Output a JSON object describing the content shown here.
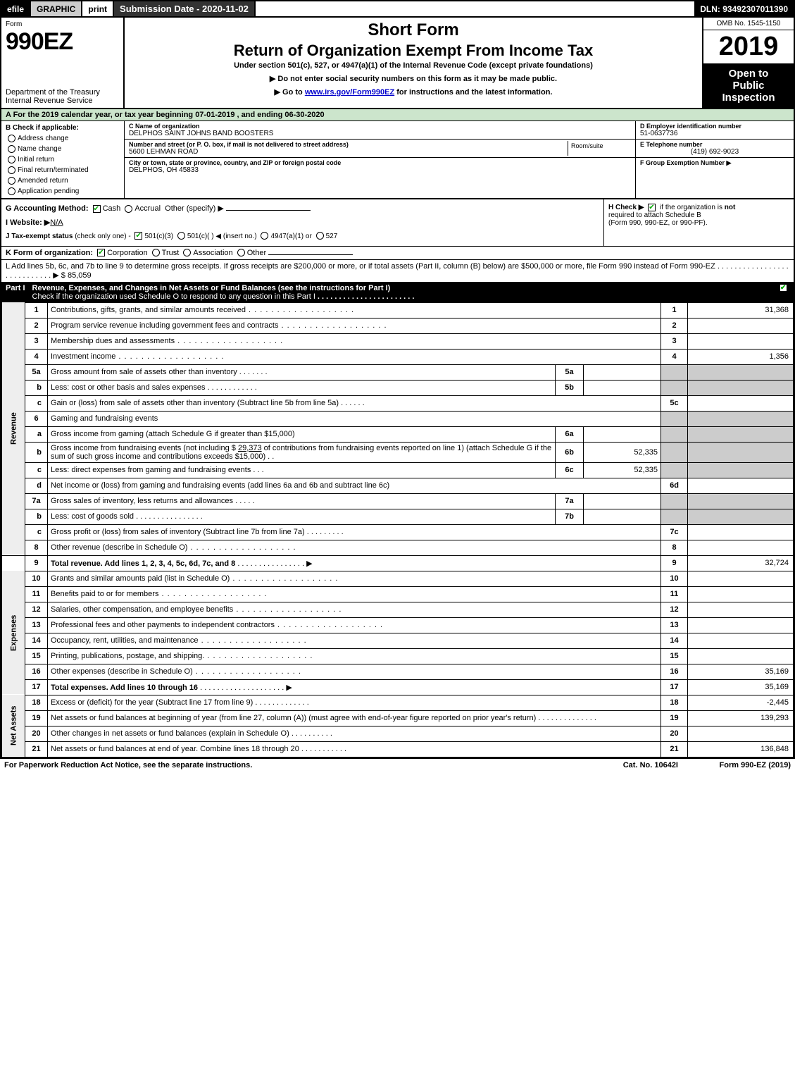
{
  "topbar": {
    "efile": "efile",
    "graphic": "GRAPHIC",
    "print": "print",
    "submission_label": "Submission Date - 2020-11-02",
    "dln": "DLN: 93492307011390"
  },
  "header": {
    "form_word": "Form",
    "form_number": "990EZ",
    "dept1": "Department of the Treasury",
    "dept2": "Internal Revenue Service",
    "short_form": "Short Form",
    "return_title": "Return of Organization Exempt From Income Tax",
    "subtitle": "Under section 501(c), 527, or 4947(a)(1) of the Internal Revenue Code (except private foundations)",
    "bullet1": "▶ Do not enter social security numbers on this form as it may be made public.",
    "bullet2_prefix": "▶ Go to ",
    "bullet2_link": "www.irs.gov/Form990EZ",
    "bullet2_suffix": " for instructions and the latest information.",
    "omb": "OMB No. 1545-1150",
    "year": "2019",
    "open1": "Open to",
    "open2": "Public",
    "open3": "Inspection"
  },
  "period": "A  For the 2019 calendar year, or tax year beginning 07-01-2019 , and ending 06-30-2020",
  "section_b": {
    "label": "B  Check if applicable:",
    "options": [
      "Address change",
      "Name change",
      "Initial return",
      "Final return/terminated",
      "Amended return",
      "Application pending"
    ]
  },
  "section_c": {
    "c_label": "C Name of organization",
    "c_name": "DELPHOS SAINT JOHNS BAND BOOSTERS",
    "addr_label": "Number and street (or P. O. box, if mail is not delivered to street address)",
    "addr_val": "5600 LEHMAN ROAD",
    "room_label": "Room/suite",
    "city_label": "City or town, state or province, country, and ZIP or foreign postal code",
    "city_val": "DELPHOS, OH  45833"
  },
  "section_d": {
    "d_label": "D Employer identification number",
    "d_val": "51-0637736",
    "e_label": "E Telephone number",
    "e_val": "(419) 692-9023",
    "f_label": "F Group Exemption Number  ▶"
  },
  "ghij": {
    "g_label": "G Accounting Method:",
    "g_cash": "Cash",
    "g_accrual": "Accrual",
    "g_other": "Other (specify) ▶",
    "i_label": "I Website: ▶",
    "i_val": "N/A",
    "j_label": "J Tax-exempt status",
    "j_note": "(check only one) -",
    "j_501c3": "501(c)(3)",
    "j_501c": "501(c)(  )",
    "j_insert": "◀ (insert no.)",
    "j_4947": "4947(a)(1) or",
    "j_527": "527",
    "h_label": "H  Check ▶",
    "h_text1": "if the organization is",
    "h_not": "not",
    "h_text2": "required to attach Schedule B",
    "h_text3": "(Form 990, 990-EZ, or 990-PF)."
  },
  "k_row": {
    "label": "K Form of organization:",
    "corp": "Corporation",
    "trust": "Trust",
    "assoc": "Association",
    "other": "Other"
  },
  "l_row": {
    "text": "L Add lines 5b, 6c, and 7b to line 9 to determine gross receipts. If gross receipts are $200,000 or more, or if total assets (Part II, column (B) below) are $500,000 or more, file Form 990 instead of Form 990-EZ",
    "arrow": "▶",
    "amount": "$ 85,059"
  },
  "part1": {
    "label": "Part I",
    "title": "Revenue, Expenses, and Changes in Net Assets or Fund Balances (see the instructions for Part I)",
    "check_line": "Check if the organization used Schedule O to respond to any question in this Part I"
  },
  "revenue_label": "Revenue",
  "expenses_label": "Expenses",
  "netassets_label": "Net Assets",
  "lines": {
    "l1": {
      "num": "1",
      "desc": "Contributions, gifts, grants, and similar amounts received",
      "rnum": "1",
      "amount": "31,368"
    },
    "l2": {
      "num": "2",
      "desc": "Program service revenue including government fees and contracts",
      "rnum": "2",
      "amount": ""
    },
    "l3": {
      "num": "3",
      "desc": "Membership dues and assessments",
      "rnum": "3",
      "amount": ""
    },
    "l4": {
      "num": "4",
      "desc": "Investment income",
      "rnum": "4",
      "amount": "1,356"
    },
    "l5a": {
      "num": "5a",
      "desc": "Gross amount from sale of assets other than inventory",
      "inum": "5a",
      "ival": ""
    },
    "l5b": {
      "num": "b",
      "desc": "Less: cost or other basis and sales expenses",
      "inum": "5b",
      "ival": ""
    },
    "l5c": {
      "num": "c",
      "desc": "Gain or (loss) from sale of assets other than inventory (Subtract line 5b from line 5a)",
      "rnum": "5c",
      "amount": ""
    },
    "l6": {
      "num": "6",
      "desc": "Gaming and fundraising events"
    },
    "l6a": {
      "num": "a",
      "desc": "Gross income from gaming (attach Schedule G if greater than $15,000)",
      "inum": "6a",
      "ival": ""
    },
    "l6b": {
      "num": "b",
      "desc1": "Gross income from fundraising events (not including $ ",
      "amt_inline": "29,373",
      "desc2": " of contributions from fundraising events reported on line 1) (attach Schedule G if the sum of such gross income and contributions exceeds $15,000)",
      "inum": "6b",
      "ival": "52,335"
    },
    "l6c": {
      "num": "c",
      "desc": "Less: direct expenses from gaming and fundraising events",
      "inum": "6c",
      "ival": "52,335"
    },
    "l6d": {
      "num": "d",
      "desc": "Net income or (loss) from gaming and fundraising events (add lines 6a and 6b and subtract line 6c)",
      "rnum": "6d",
      "amount": ""
    },
    "l7a": {
      "num": "7a",
      "desc": "Gross sales of inventory, less returns and allowances",
      "inum": "7a",
      "ival": ""
    },
    "l7b": {
      "num": "b",
      "desc": "Less: cost of goods sold",
      "inum": "7b",
      "ival": ""
    },
    "l7c": {
      "num": "c",
      "desc": "Gross profit or (loss) from sales of inventory (Subtract line 7b from line 7a)",
      "rnum": "7c",
      "amount": ""
    },
    "l8": {
      "num": "8",
      "desc": "Other revenue (describe in Schedule O)",
      "rnum": "8",
      "amount": ""
    },
    "l9": {
      "num": "9",
      "desc": "Total revenue. Add lines 1, 2, 3, 4, 5c, 6d, 7c, and 8",
      "arrow": "▶",
      "rnum": "9",
      "amount": "32,724"
    },
    "l10": {
      "num": "10",
      "desc": "Grants and similar amounts paid (list in Schedule O)",
      "rnum": "10",
      "amount": ""
    },
    "l11": {
      "num": "11",
      "desc": "Benefits paid to or for members",
      "rnum": "11",
      "amount": ""
    },
    "l12": {
      "num": "12",
      "desc": "Salaries, other compensation, and employee benefits",
      "rnum": "12",
      "amount": ""
    },
    "l13": {
      "num": "13",
      "desc": "Professional fees and other payments to independent contractors",
      "rnum": "13",
      "amount": ""
    },
    "l14": {
      "num": "14",
      "desc": "Occupancy, rent, utilities, and maintenance",
      "rnum": "14",
      "amount": ""
    },
    "l15": {
      "num": "15",
      "desc": "Printing, publications, postage, and shipping.",
      "rnum": "15",
      "amount": ""
    },
    "l16": {
      "num": "16",
      "desc": "Other expenses (describe in Schedule O)",
      "rnum": "16",
      "amount": "35,169"
    },
    "l17": {
      "num": "17",
      "desc": "Total expenses. Add lines 10 through 16",
      "arrow": "▶",
      "rnum": "17",
      "amount": "35,169"
    },
    "l18": {
      "num": "18",
      "desc": "Excess or (deficit) for the year (Subtract line 17 from line 9)",
      "rnum": "18",
      "amount": "-2,445"
    },
    "l19": {
      "num": "19",
      "desc": "Net assets or fund balances at beginning of year (from line 27, column (A)) (must agree with end-of-year figure reported on prior year's return)",
      "rnum": "19",
      "amount": "139,293"
    },
    "l20": {
      "num": "20",
      "desc": "Other changes in net assets or fund balances (explain in Schedule O)",
      "rnum": "20",
      "amount": ""
    },
    "l21": {
      "num": "21",
      "desc": "Net assets or fund balances at end of year. Combine lines 18 through 20",
      "rnum": "21",
      "amount": "136,848"
    }
  },
  "footer": {
    "left": "For Paperwork Reduction Act Notice, see the separate instructions.",
    "mid": "Cat. No. 10642I",
    "right": "Form 990-EZ (2019)"
  },
  "colors": {
    "black": "#000000",
    "white": "#ffffff",
    "period_bg": "#cce5cc",
    "shade": "#cccccc",
    "link": "#0000cc",
    "check_green": "#00aa00"
  }
}
